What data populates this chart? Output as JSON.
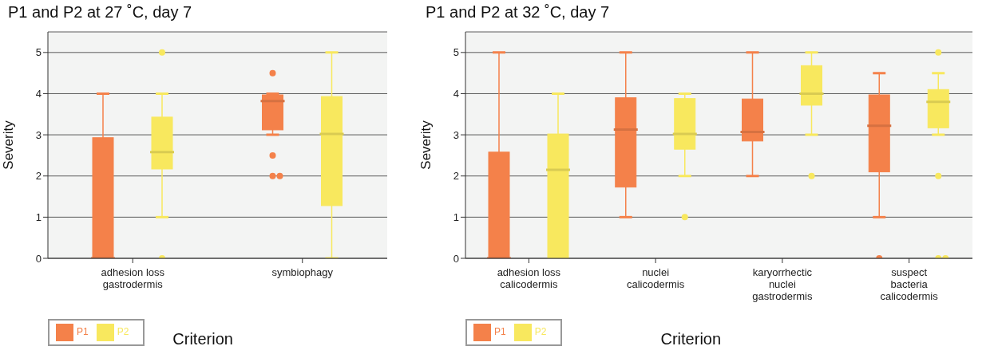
{
  "chart_data": [
    {
      "type": "box",
      "title": "P1 and P2 at 27 ˚C, day 7",
      "xlabel": "Criterion",
      "ylabel": "Severity",
      "categories": [
        "adhesion loss gastrodermis",
        "symbiophagy"
      ],
      "ylim": [
        0,
        5.5
      ],
      "yticks": [
        0,
        1,
        2,
        3,
        4,
        5
      ],
      "grid": "y",
      "legend": "bottom left",
      "series": [
        {
          "name": "P1",
          "color": "#f4814a",
          "boxes": [
            {
              "low": 0,
              "q1": 0,
              "median": 0,
              "q3": 2.93,
              "high": 4
            },
            {
              "low": 3,
              "q1": 3.12,
              "median": 3.82,
              "q3": 3.97,
              "high": 4,
              "outliers": [
                2.5,
                2,
                2,
                4.5
              ]
            }
          ]
        },
        {
          "name": "P2",
          "color": "#f8e85e",
          "boxes": [
            {
              "low": 1,
              "q1": 2.17,
              "median": 2.58,
              "q3": 3.43,
              "high": 4,
              "outliers": [
                5,
                0
              ]
            },
            {
              "low": 0,
              "q1": 1.28,
              "median": 3.02,
              "q3": 3.93,
              "high": 5
            }
          ]
        }
      ]
    },
    {
      "type": "box",
      "title": "P1 and P2 at 32 ˚C, day 7",
      "xlabel": "Criterion",
      "ylabel": "Severity",
      "categories": [
        "adhesion loss calicodermis",
        "nuclei calicodermis",
        "karyorrhectic nuclei gastrodermis",
        "suspect bacteria calicodermis"
      ],
      "ylim": [
        0,
        5.5
      ],
      "yticks": [
        0,
        1,
        2,
        3,
        4,
        5
      ],
      "grid": "y",
      "legend": "bottom left",
      "series": [
        {
          "name": "P1",
          "color": "#f4814a",
          "boxes": [
            {
              "low": 0,
              "q1": 0,
              "median": 0,
              "q3": 2.58,
              "high": 5
            },
            {
              "low": 1,
              "q1": 1.73,
              "median": 3.13,
              "q3": 3.9,
              "high": 5
            },
            {
              "low": 2,
              "q1": 2.85,
              "median": 3.07,
              "q3": 3.87,
              "high": 5
            },
            {
              "low": 1,
              "q1": 2.1,
              "median": 3.22,
              "q3": 3.97,
              "high": 4.5,
              "outliers": [
                0
              ]
            }
          ]
        },
        {
          "name": "P2",
          "color": "#f8e85e",
          "boxes": [
            {
              "low": 0,
              "q1": 0,
              "median": 2.15,
              "q3": 3.02,
              "high": 4
            },
            {
              "low": 2,
              "q1": 2.65,
              "median": 3.02,
              "q3": 3.88,
              "high": 4,
              "outliers": [
                1
              ]
            },
            {
              "low": 3,
              "q1": 3.72,
              "median": 4,
              "q3": 4.68,
              "high": 5,
              "outliers": [
                2
              ]
            },
            {
              "low": 3,
              "q1": 3.17,
              "median": 3.8,
              "q3": 4.1,
              "high": 4.5,
              "outliers": [
                2,
                5,
                0,
                0
              ]
            }
          ]
        }
      ]
    }
  ]
}
